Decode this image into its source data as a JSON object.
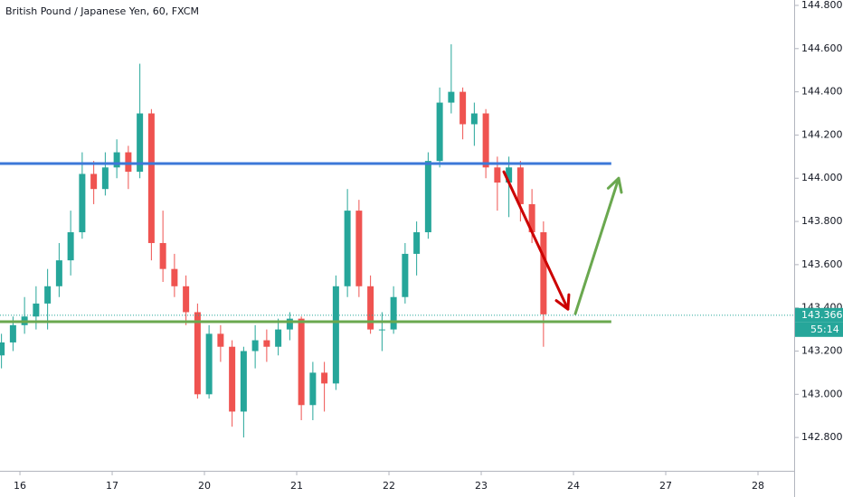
{
  "chart_data": {
    "type": "candlestick",
    "title": "British Pound / Japanese Yen, 60, FXCM",
    "up_color": "#26a69a",
    "down_color": "#ef5350",
    "x": [
      -0.2,
      -0.075,
      0.05,
      0.175,
      0.3,
      0.425,
      0.55,
      0.675,
      0.8,
      0.925,
      1.05,
      1.175,
      1.3,
      1.425,
      1.55,
      1.675,
      1.8,
      1.925,
      2.05,
      2.175,
      2.3,
      2.425,
      2.55,
      2.675,
      2.8,
      2.925,
      3.05,
      3.175,
      3.3,
      3.425,
      3.55,
      3.675,
      3.8,
      3.925,
      4.05,
      4.175,
      4.3,
      4.425,
      4.55,
      4.675,
      4.8,
      4.925,
      5.05,
      5.175,
      5.3,
      5.425,
      5.55,
      5.675
    ],
    "open": [
      143.18,
      143.24,
      143.32,
      143.36,
      143.42,
      143.5,
      143.62,
      143.75,
      144.02,
      143.95,
      144.05,
      144.12,
      144.03,
      144.3,
      143.7,
      143.58,
      143.5,
      143.38,
      143.0,
      143.28,
      143.22,
      142.92,
      143.2,
      143.25,
      143.22,
      143.3,
      143.35,
      142.95,
      143.1,
      143.05,
      143.5,
      143.85,
      143.5,
      143.3,
      143.3,
      143.45,
      143.65,
      143.75,
      144.08,
      144.35,
      144.4,
      144.25,
      144.3,
      144.05,
      143.98,
      144.05,
      143.88,
      143.75
    ],
    "high": [
      143.28,
      143.36,
      143.45,
      143.5,
      143.58,
      143.7,
      143.85,
      144.12,
      144.08,
      144.12,
      144.18,
      144.15,
      144.53,
      144.32,
      143.85,
      143.65,
      143.55,
      143.42,
      143.32,
      143.32,
      143.25,
      143.22,
      143.32,
      143.3,
      143.35,
      143.38,
      143.36,
      143.15,
      143.15,
      143.55,
      143.95,
      143.9,
      143.55,
      143.38,
      143.5,
      143.7,
      143.8,
      144.12,
      144.42,
      144.62,
      144.42,
      144.35,
      144.32,
      144.1,
      144.1,
      144.08,
      143.95,
      143.8
    ],
    "low": [
      143.12,
      143.2,
      143.28,
      143.3,
      143.3,
      143.45,
      143.55,
      143.72,
      143.88,
      143.92,
      144.0,
      143.95,
      144.0,
      143.62,
      143.52,
      143.45,
      143.32,
      142.98,
      142.98,
      143.15,
      142.85,
      142.8,
      143.12,
      143.15,
      143.18,
      143.25,
      142.88,
      142.88,
      142.92,
      143.02,
      143.45,
      143.45,
      143.28,
      143.2,
      143.28,
      143.42,
      143.55,
      143.72,
      144.05,
      144.3,
      144.18,
      144.15,
      144.0,
      143.85,
      143.82,
      143.8,
      143.7,
      143.22
    ],
    "close": [
      143.24,
      143.32,
      143.36,
      143.42,
      143.5,
      143.62,
      143.75,
      144.02,
      143.95,
      144.05,
      144.12,
      144.03,
      144.3,
      143.7,
      143.58,
      143.5,
      143.38,
      143.0,
      143.28,
      143.22,
      142.92,
      143.2,
      143.25,
      143.22,
      143.3,
      143.35,
      142.95,
      143.1,
      143.05,
      143.5,
      143.85,
      143.5,
      143.3,
      143.3,
      143.45,
      143.65,
      143.75,
      144.08,
      144.35,
      144.4,
      144.25,
      144.3,
      144.05,
      143.98,
      144.05,
      143.88,
      143.75,
      143.37
    ],
    "xlim": [
      -0.216,
      8.392
    ],
    "xticks": [
      {
        "value": 0,
        "label": "16"
      },
      {
        "value": 1,
        "label": "17"
      },
      {
        "value": 2,
        "label": "20"
      },
      {
        "value": 3,
        "label": "21"
      },
      {
        "value": 4,
        "label": "22"
      },
      {
        "value": 5,
        "label": "23"
      },
      {
        "value": 6,
        "label": "24"
      },
      {
        "value": 7,
        "label": "27"
      },
      {
        "value": 8,
        "label": "28"
      }
    ],
    "ylim": [
      142.65,
      144.825
    ],
    "yticks": [
      {
        "value": 142.8,
        "label": "142.800"
      },
      {
        "value": 143.0,
        "label": "143.000"
      },
      {
        "value": 143.2,
        "label": "143.200"
      },
      {
        "value": 143.4,
        "label": "143.400"
      },
      {
        "value": 143.6,
        "label": "143.600"
      },
      {
        "value": 143.8,
        "label": "143.800"
      },
      {
        "value": 144.0,
        "label": "144.000"
      },
      {
        "value": 144.2,
        "label": "144.200"
      },
      {
        "value": 144.4,
        "label": "144.400"
      },
      {
        "value": 144.6,
        "label": "144.600"
      },
      {
        "value": 144.8,
        "label": "144.800"
      }
    ],
    "current_price": {
      "value": 143.366,
      "label": "143.366",
      "countdown": "55:14",
      "color": "#26a69a"
    },
    "levels": [
      {
        "value": 144.068,
        "x_end": 6.41,
        "color": "#3c78d8"
      },
      {
        "value": 143.336,
        "x_end": 6.41,
        "color": "#6aa84f"
      }
    ],
    "arrows": [
      {
        "x": [
          5.245,
          5.94
        ],
        "y": [
          144.03,
          143.394
        ],
        "color": "#cc0000"
      },
      {
        "x": [
          6.02,
          6.49
        ],
        "y": [
          143.373,
          144.0
        ],
        "color": "#6aa84f"
      }
    ]
  }
}
